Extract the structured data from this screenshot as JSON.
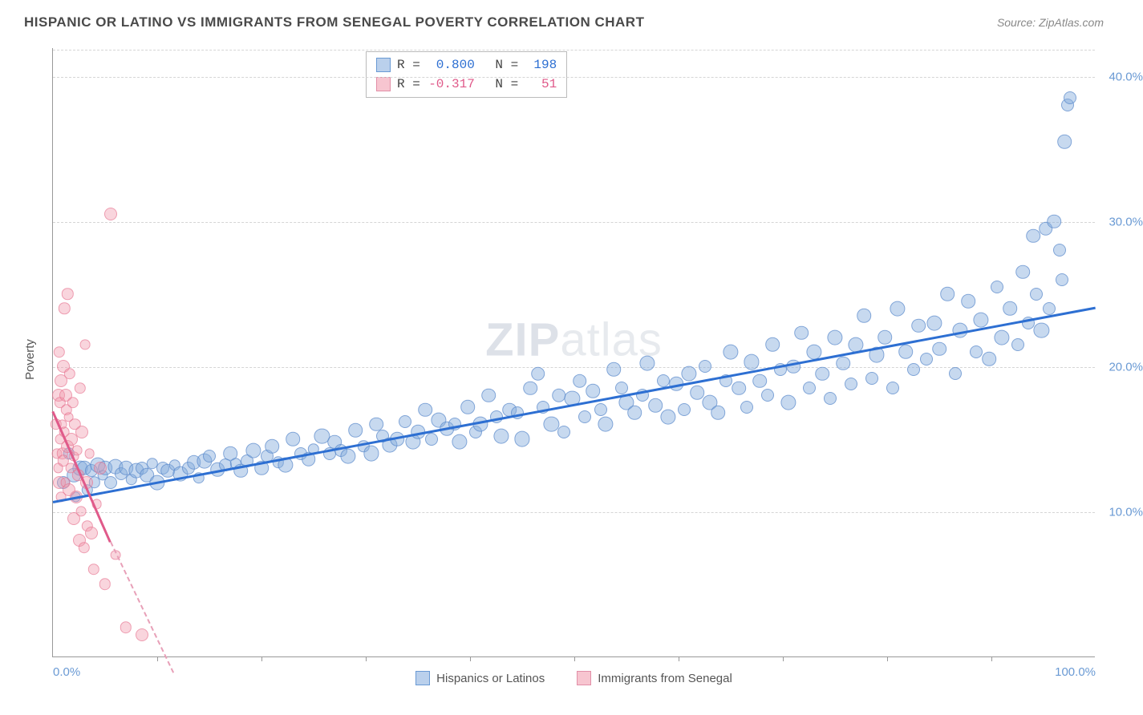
{
  "header": {
    "title": "HISPANIC OR LATINO VS IMMIGRANTS FROM SENEGAL POVERTY CORRELATION CHART",
    "source": "Source: ZipAtlas.com"
  },
  "watermark": {
    "prefix": "ZIP",
    "suffix": "atlas"
  },
  "chart": {
    "type": "scatter",
    "ylabel": "Poverty",
    "background_color": "#ffffff",
    "grid_color": "#d5d5d5",
    "axis_color": "#999999",
    "x": {
      "min": 0,
      "max": 100,
      "ticks_major": [
        0,
        100
      ],
      "tick_labels": [
        "0.0%",
        "100.0%"
      ],
      "ticks_minor": [
        10,
        20,
        30,
        40,
        50,
        60,
        70,
        80,
        90
      ],
      "label_color": "#6a9ad4",
      "label_fontsize": 15
    },
    "y": {
      "min": 0,
      "max": 42,
      "gridlines": [
        10,
        20,
        30,
        40
      ],
      "tick_labels": [
        "10.0%",
        "20.0%",
        "30.0%",
        "40.0%"
      ],
      "label_color": "#6a9ad4",
      "label_fontsize": 15
    },
    "series": [
      {
        "id": "blue",
        "name": "Hispanics or Latinos",
        "color_fill": "rgba(130,170,220,0.45)",
        "color_stroke": "rgba(80,130,200,0.6)",
        "marker_radius_min": 6,
        "marker_radius_max": 13,
        "trend": {
          "x0": 0,
          "y0": 10.8,
          "x1": 100,
          "y1": 24.2,
          "color": "#2d6fd2",
          "width": 2.5
        },
        "stats": {
          "R": "0.800",
          "N": "198"
        },
        "points": [
          [
            1,
            12,
            10
          ],
          [
            1.5,
            14,
            9
          ],
          [
            2,
            12.5,
            11
          ],
          [
            2.2,
            11,
            8
          ],
          [
            2.6,
            13,
            12
          ],
          [
            3,
            13,
            11
          ],
          [
            3.3,
            11.5,
            9
          ],
          [
            3.7,
            12.8,
            10
          ],
          [
            4,
            12,
            9
          ],
          [
            4.3,
            13.2,
            12
          ],
          [
            4.8,
            12.5,
            8
          ],
          [
            5,
            13,
            11
          ],
          [
            5.5,
            12,
            10
          ],
          [
            6,
            13.1,
            12
          ],
          [
            6.5,
            12.6,
            10
          ],
          [
            7,
            13,
            11
          ],
          [
            7.5,
            12.2,
            9
          ],
          [
            8,
            12.8,
            12
          ],
          [
            8.5,
            13,
            10
          ],
          [
            9,
            12.5,
            11
          ],
          [
            9.5,
            13.3,
            9
          ],
          [
            10,
            12,
            12
          ],
          [
            10.5,
            13,
            10
          ],
          [
            11,
            12.8,
            11
          ],
          [
            11.7,
            13.2,
            9
          ],
          [
            12.2,
            12.6,
            12
          ],
          [
            13,
            13,
            10
          ],
          [
            13.5,
            13.4,
            11
          ],
          [
            14,
            12.3,
            9
          ],
          [
            14.5,
            13.5,
            12
          ],
          [
            15,
            13.8,
            10
          ],
          [
            15.8,
            12.9,
            11
          ],
          [
            16.5,
            13.2,
            10
          ],
          [
            17,
            14,
            11
          ],
          [
            17.5,
            13.3,
            9
          ],
          [
            18,
            12.8,
            11
          ],
          [
            18.6,
            13.5,
            10
          ],
          [
            19.2,
            14.2,
            12
          ],
          [
            20,
            13,
            11
          ],
          [
            20.5,
            13.8,
            10
          ],
          [
            21,
            14.5,
            11
          ],
          [
            21.6,
            13.4,
            9
          ],
          [
            22.3,
            13.2,
            12
          ],
          [
            23,
            15,
            11
          ],
          [
            23.8,
            14,
            10
          ],
          [
            24.5,
            13.6,
            11
          ],
          [
            25,
            14.3,
            9
          ],
          [
            25.8,
            15.2,
            12
          ],
          [
            26.5,
            14,
            10
          ],
          [
            27,
            14.8,
            11
          ],
          [
            27.6,
            14.2,
            10
          ],
          [
            28.3,
            13.8,
            12
          ],
          [
            29,
            15.6,
            11
          ],
          [
            29.8,
            14.5,
            9
          ],
          [
            30.5,
            14,
            12
          ],
          [
            31,
            16,
            11
          ],
          [
            31.6,
            15.2,
            10
          ],
          [
            32.3,
            14.6,
            12
          ],
          [
            33,
            15,
            11
          ],
          [
            33.8,
            16.2,
            10
          ],
          [
            34.5,
            14.8,
            12
          ],
          [
            35,
            15.5,
            11
          ],
          [
            35.7,
            17,
            11
          ],
          [
            36.3,
            15,
            10
          ],
          [
            37,
            16.3,
            12
          ],
          [
            37.8,
            15.7,
            11
          ],
          [
            38.5,
            16,
            10
          ],
          [
            39,
            14.8,
            12
          ],
          [
            39.8,
            17.2,
            11
          ],
          [
            40.5,
            15.5,
            10
          ],
          [
            41,
            16,
            12
          ],
          [
            41.8,
            18,
            11
          ],
          [
            42.5,
            16.5,
            10
          ],
          [
            43,
            15.2,
            12
          ],
          [
            43.8,
            17,
            11
          ],
          [
            44.5,
            16.8,
            10
          ],
          [
            45,
            15,
            12
          ],
          [
            45.8,
            18.5,
            11
          ],
          [
            46.5,
            19.5,
            11
          ],
          [
            47,
            17.2,
            10
          ],
          [
            47.8,
            16,
            12
          ],
          [
            48.5,
            18,
            11
          ],
          [
            49,
            15.5,
            10
          ],
          [
            49.8,
            17.8,
            12
          ],
          [
            50.5,
            19,
            11
          ],
          [
            51,
            16.5,
            10
          ],
          [
            51.8,
            18.3,
            11
          ],
          [
            52.5,
            17,
            10
          ],
          [
            53,
            16,
            12
          ],
          [
            53.8,
            19.8,
            11
          ],
          [
            54.5,
            18.5,
            10
          ],
          [
            55,
            17.5,
            12
          ],
          [
            55.8,
            16.8,
            11
          ],
          [
            56.5,
            18,
            10
          ],
          [
            57,
            20.2,
            12
          ],
          [
            57.8,
            17.3,
            11
          ],
          [
            58.5,
            19,
            10
          ],
          [
            59,
            16.5,
            12
          ],
          [
            59.8,
            18.8,
            11
          ],
          [
            60.5,
            17,
            10
          ],
          [
            61,
            19.5,
            12
          ],
          [
            61.8,
            18.2,
            11
          ],
          [
            62.5,
            20,
            10
          ],
          [
            63,
            17.5,
            12
          ],
          [
            63.8,
            16.8,
            11
          ],
          [
            64.5,
            19,
            10
          ],
          [
            65,
            21,
            12
          ],
          [
            65.8,
            18.5,
            11
          ],
          [
            66.5,
            17.2,
            10
          ],
          [
            67,
            20.3,
            12
          ],
          [
            67.8,
            19,
            11
          ],
          [
            68.5,
            18,
            10
          ],
          [
            69,
            21.5,
            11
          ],
          [
            69.8,
            19.8,
            10
          ],
          [
            70.5,
            17.5,
            12
          ],
          [
            71,
            20,
            11
          ],
          [
            71.8,
            22.3,
            11
          ],
          [
            72.5,
            18.5,
            10
          ],
          [
            73,
            21,
            12
          ],
          [
            73.8,
            19.5,
            11
          ],
          [
            74.5,
            17.8,
            10
          ],
          [
            75,
            22,
            12
          ],
          [
            75.8,
            20.2,
            11
          ],
          [
            76.5,
            18.8,
            10
          ],
          [
            77,
            21.5,
            12
          ],
          [
            77.8,
            23.5,
            11
          ],
          [
            78.5,
            19.2,
            10
          ],
          [
            79,
            20.8,
            12
          ],
          [
            79.8,
            22,
            11
          ],
          [
            80.5,
            18.5,
            10
          ],
          [
            81,
            24,
            12
          ],
          [
            81.8,
            21,
            11
          ],
          [
            82.5,
            19.8,
            10
          ],
          [
            83,
            22.8,
            11
          ],
          [
            83.8,
            20.5,
            10
          ],
          [
            84.5,
            23,
            12
          ],
          [
            85,
            21.2,
            11
          ],
          [
            85.8,
            25,
            11
          ],
          [
            86.5,
            19.5,
            10
          ],
          [
            87,
            22.5,
            12
          ],
          [
            87.8,
            24.5,
            11
          ],
          [
            88.5,
            21,
            10
          ],
          [
            89,
            23.2,
            12
          ],
          [
            89.8,
            20.5,
            11
          ],
          [
            90.5,
            25.5,
            10
          ],
          [
            91,
            22,
            12
          ],
          [
            91.8,
            24,
            11
          ],
          [
            92.5,
            21.5,
            10
          ],
          [
            93,
            26.5,
            11
          ],
          [
            93.5,
            23,
            10
          ],
          [
            94,
            29,
            11
          ],
          [
            94.3,
            25,
            10
          ],
          [
            94.8,
            22.5,
            12
          ],
          [
            95.2,
            29.5,
            11
          ],
          [
            95.5,
            24,
            10
          ],
          [
            96,
            30,
            11
          ],
          [
            96.5,
            28,
            10
          ],
          [
            97,
            35.5,
            11
          ],
          [
            97.3,
            38,
            10
          ],
          [
            97.5,
            38.5,
            10
          ],
          [
            96.8,
            26,
            10
          ]
        ]
      },
      {
        "id": "pink",
        "name": "Immigrants from Senegal",
        "color_fill": "rgba(240,150,170,0.40)",
        "color_stroke": "rgba(230,110,140,0.55)",
        "marker_radius_min": 6,
        "marker_radius_max": 12,
        "trend_solid": {
          "x0": 0,
          "y0": 17,
          "x1": 5.5,
          "y1": 8,
          "color": "#e05a8a",
          "width": 2
        },
        "trend_dash": {
          "x0": 5.5,
          "y0": 8,
          "x1": 11.5,
          "y1": -1,
          "color": "#e8a0b8",
          "width": 2
        },
        "stats": {
          "R": "-0.317",
          "N": "51"
        },
        "points": [
          [
            0.3,
            16,
            9
          ],
          [
            0.4,
            14,
            8
          ],
          [
            0.5,
            18,
            10
          ],
          [
            0.5,
            13,
            8
          ],
          [
            0.6,
            21,
            9
          ],
          [
            0.6,
            12,
            10
          ],
          [
            0.7,
            15,
            8
          ],
          [
            0.7,
            17.5,
            9
          ],
          [
            0.8,
            19,
            10
          ],
          [
            0.8,
            11,
            8
          ],
          [
            0.9,
            14,
            9
          ],
          [
            0.9,
            16,
            8
          ],
          [
            1.0,
            20,
            10
          ],
          [
            1.0,
            13.5,
            9
          ],
          [
            1.1,
            15.5,
            8
          ],
          [
            1.1,
            24,
            9
          ],
          [
            1.2,
            18,
            10
          ],
          [
            1.2,
            12,
            8
          ],
          [
            1.3,
            17,
            9
          ],
          [
            1.4,
            14.5,
            10
          ],
          [
            1.4,
            25,
            9
          ],
          [
            1.5,
            16.5,
            8
          ],
          [
            1.5,
            11.5,
            10
          ],
          [
            1.6,
            19.5,
            9
          ],
          [
            1.7,
            13,
            8
          ],
          [
            1.8,
            15,
            10
          ],
          [
            1.9,
            17.5,
            9
          ],
          [
            2.0,
            9.5,
            10
          ],
          [
            2.0,
            13.8,
            8
          ],
          [
            2.1,
            16,
            9
          ],
          [
            2.2,
            11,
            10
          ],
          [
            2.3,
            14.2,
            8
          ],
          [
            2.4,
            12.5,
            9
          ],
          [
            2.5,
            8,
            10
          ],
          [
            2.6,
            18.5,
            9
          ],
          [
            2.7,
            10,
            8
          ],
          [
            2.8,
            15.5,
            10
          ],
          [
            3.0,
            7.5,
            9
          ],
          [
            3.1,
            21.5,
            8
          ],
          [
            3.2,
            12,
            10
          ],
          [
            3.3,
            9,
            9
          ],
          [
            3.5,
            14,
            8
          ],
          [
            3.7,
            8.5,
            10
          ],
          [
            3.9,
            6,
            9
          ],
          [
            4.2,
            10.5,
            8
          ],
          [
            4.5,
            13,
            10
          ],
          [
            5.0,
            5,
            9
          ],
          [
            5.5,
            30.5,
            10
          ],
          [
            6.0,
            7,
            8
          ],
          [
            7.0,
            2,
            9
          ],
          [
            8.5,
            1.5,
            10
          ]
        ]
      }
    ],
    "stats_box": {
      "R_label": "R =",
      "N_label": "N ="
    },
    "bottom_legend": {
      "items": [
        {
          "color": "blue",
          "label": "Hispanics or Latinos"
        },
        {
          "color": "pink",
          "label": "Immigrants from Senegal"
        }
      ]
    }
  }
}
